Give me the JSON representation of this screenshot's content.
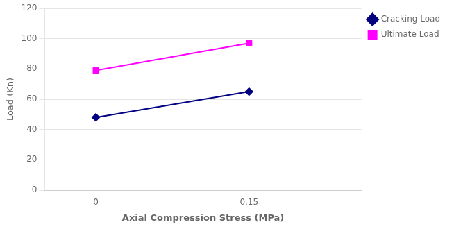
{
  "chart_data": {
    "type": "line",
    "xlabel": "Axial Compression Stress (MPa)",
    "ylabel": "Load (Kn)",
    "x": [
      0,
      0.15
    ],
    "series": [
      {
        "name": "Cracking Load",
        "color": "#000080",
        "marker": "diamond",
        "values": [
          48,
          65
        ]
      },
      {
        "name": "Ultimate Load",
        "color": "#FF00FF",
        "marker": "square",
        "values": [
          79,
          97
        ]
      }
    ],
    "xlim": [
      -0.05,
      0.26
    ],
    "xticks": [
      0,
      0.15
    ],
    "ylim": [
      0,
      120
    ],
    "yticks": [
      0,
      20,
      40,
      60,
      80,
      100,
      120
    ],
    "grid": "y",
    "legend": "right"
  }
}
